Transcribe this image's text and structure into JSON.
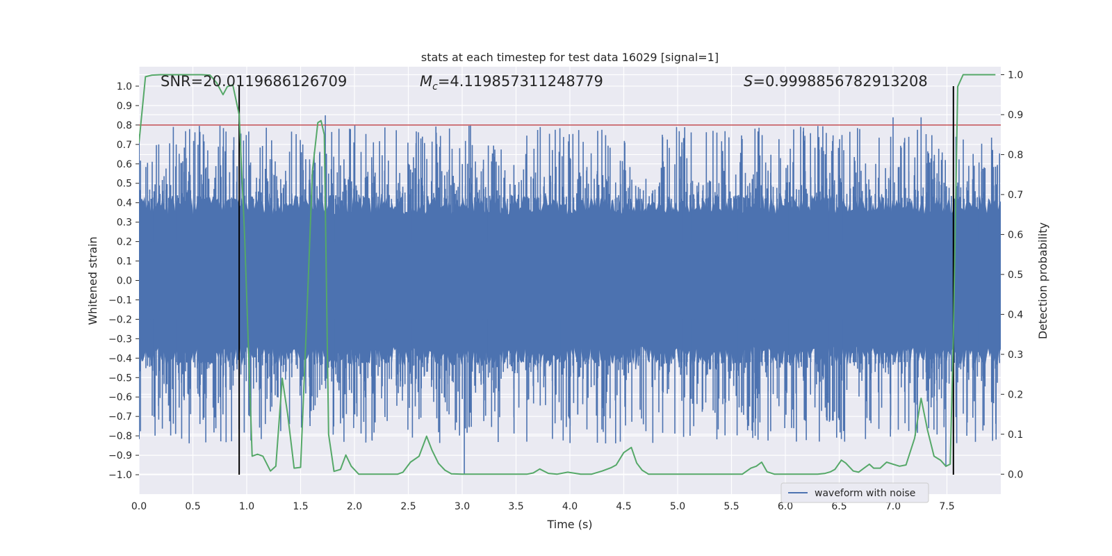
{
  "chart_data": {
    "type": "line",
    "title": "stats at each timestep for test data 16029 [signal=1]",
    "xlabel": "Time (s)",
    "ylabel_left": "Whitened strain",
    "ylabel_right": "Detection probability",
    "xlim": [
      0.0,
      8.0
    ],
    "ylim_left": [
      -1.1,
      1.1
    ],
    "ylim_right": [
      -0.05,
      1.02
    ],
    "xticks": [
      "0.0",
      "0.5",
      "1.0",
      "1.5",
      "2.0",
      "2.5",
      "3.0",
      "3.5",
      "4.0",
      "4.5",
      "5.0",
      "5.5",
      "6.0",
      "6.5",
      "7.0",
      "7.5"
    ],
    "yticks_left": [
      "1.0",
      "0.9",
      "0.8",
      "0.7",
      "0.6",
      "0.5",
      "0.4",
      "0.3",
      "0.2",
      "0.1",
      "0.0",
      "−0.1",
      "−0.2",
      "−0.3",
      "−0.4",
      "−0.5",
      "−0.6",
      "−0.7",
      "−0.8",
      "−0.9",
      "−1.0"
    ],
    "yticks_right": [
      "1.0",
      "0.9",
      "0.8",
      "0.7",
      "0.6",
      "0.5",
      "0.4",
      "0.3",
      "0.2",
      "0.1",
      "0.0"
    ],
    "grid": true,
    "annotations": {
      "snr": "SNR=20.0119686126709",
      "mc_symbol": "M",
      "mc_sub": "c",
      "mc_value": "=4.119857311248779",
      "s_symbol": "S",
      "s_value": "=0.9998856782913208"
    },
    "threshold_left": 0.8,
    "vlines_x": [
      0.93,
      7.56
    ],
    "legend": {
      "label": "waveform with noise",
      "location": "lower-right"
    },
    "series": [
      {
        "name": "waveform with noise",
        "axis": "left",
        "color": "#4c72b0",
        "description": "dense whitened strain noise sampled across 0-8 s, core amplitude about 0.38 with spikes up to 0.85 and down to -1.0"
      },
      {
        "name": "detection probability",
        "axis": "right",
        "color": "#55a868",
        "x": [
          0.0,
          0.06,
          0.12,
          0.2,
          0.3,
          0.4,
          0.5,
          0.58,
          0.66,
          0.72,
          0.78,
          0.82,
          0.87,
          0.93,
          0.98,
          1.05,
          1.1,
          1.15,
          1.22,
          1.27,
          1.33,
          1.38,
          1.44,
          1.5,
          1.56,
          1.61,
          1.66,
          1.69,
          1.72,
          1.76,
          1.81,
          1.87,
          1.92,
          1.97,
          2.04,
          2.12,
          2.2,
          2.3,
          2.4,
          2.45,
          2.52,
          2.6,
          2.67,
          2.72,
          2.78,
          2.84,
          2.9,
          3.0,
          3.2,
          3.4,
          3.6,
          3.66,
          3.72,
          3.8,
          3.88,
          3.98,
          4.1,
          4.2,
          4.3,
          4.38,
          4.43,
          4.5,
          4.57,
          4.62,
          4.67,
          4.73,
          4.82,
          4.9,
          5.0,
          5.2,
          5.4,
          5.5,
          5.6,
          5.68,
          5.73,
          5.78,
          5.83,
          5.9,
          6.0,
          6.1,
          6.2,
          6.3,
          6.37,
          6.42,
          6.46,
          6.52,
          6.56,
          6.63,
          6.68,
          6.73,
          6.78,
          6.82,
          6.88,
          6.94,
          7.0,
          7.06,
          7.12,
          7.2,
          7.26,
          7.32,
          7.38,
          7.44,
          7.49,
          7.53,
          7.56,
          7.6,
          7.65,
          7.7,
          7.75,
          7.82,
          7.9,
          7.95
        ],
        "y": [
          0.83,
          0.995,
          0.999,
          1.0,
          1.0,
          1.0,
          1.0,
          1.0,
          0.999,
          0.98,
          0.95,
          0.97,
          0.975,
          0.9,
          0.6,
          0.045,
          0.05,
          0.045,
          0.008,
          0.02,
          0.24,
          0.15,
          0.015,
          0.017,
          0.41,
          0.76,
          0.88,
          0.885,
          0.85,
          0.1,
          0.007,
          0.012,
          0.048,
          0.02,
          0.0,
          0.0,
          0.0,
          0.0,
          0.0,
          0.005,
          0.03,
          0.045,
          0.095,
          0.06,
          0.027,
          0.01,
          0.001,
          0.0,
          0.0,
          0.0,
          0.0,
          0.003,
          0.013,
          0.002,
          0.0,
          0.005,
          0.0,
          0.0,
          0.008,
          0.016,
          0.023,
          0.054,
          0.067,
          0.028,
          0.01,
          0.0,
          0.0,
          0.0,
          0.0,
          0.0,
          0.0,
          0.0,
          0.0,
          0.015,
          0.02,
          0.03,
          0.006,
          0.0,
          0.0,
          0.0,
          0.0,
          0.0,
          0.002,
          0.006,
          0.012,
          0.035,
          0.028,
          0.008,
          0.005,
          0.015,
          0.025,
          0.015,
          0.015,
          0.03,
          0.025,
          0.02,
          0.023,
          0.09,
          0.19,
          0.11,
          0.045,
          0.035,
          0.02,
          0.025,
          0.35,
          0.97,
          1.0,
          1.0,
          1.0,
          1.0,
          1.0,
          1.0
        ]
      }
    ]
  },
  "colors": {
    "plot_bg": "#eaeaf2",
    "grid": "#ffffff",
    "strain": "#4c72b0",
    "prob": "#55a868",
    "threshold": "#c44e52",
    "vline": "#000000"
  }
}
